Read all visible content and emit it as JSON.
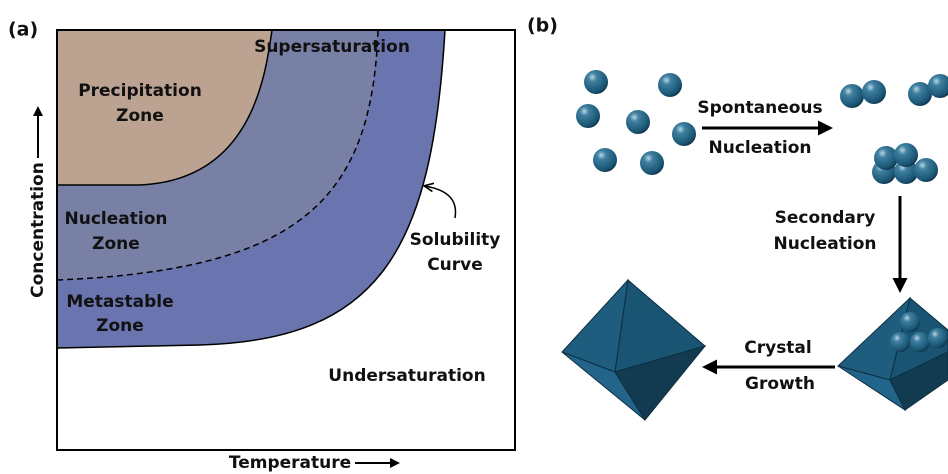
{
  "panel_a": {
    "label": "(a)",
    "supersaturation": "Supersaturation",
    "precipitation_zone": [
      "Precipitation",
      "Zone"
    ],
    "nucleation_zone": [
      "Nucleation",
      "Zone"
    ],
    "metastable_zone": [
      "Metastable",
      "Zone"
    ],
    "solubility_curve": [
      "Solubility",
      "Curve"
    ],
    "undersaturation": "Undersaturation",
    "y_axis_label": "Concentration",
    "x_axis_label": "Temperature"
  },
  "panel_b": {
    "label": "(b)",
    "spontaneous_nucleation": [
      "Spontaneous",
      "Nucleation"
    ],
    "secondary_nucleation": [
      "Secondary",
      "Nucleation"
    ],
    "crystal_growth": [
      "Crystal",
      "Growth"
    ]
  }
}
